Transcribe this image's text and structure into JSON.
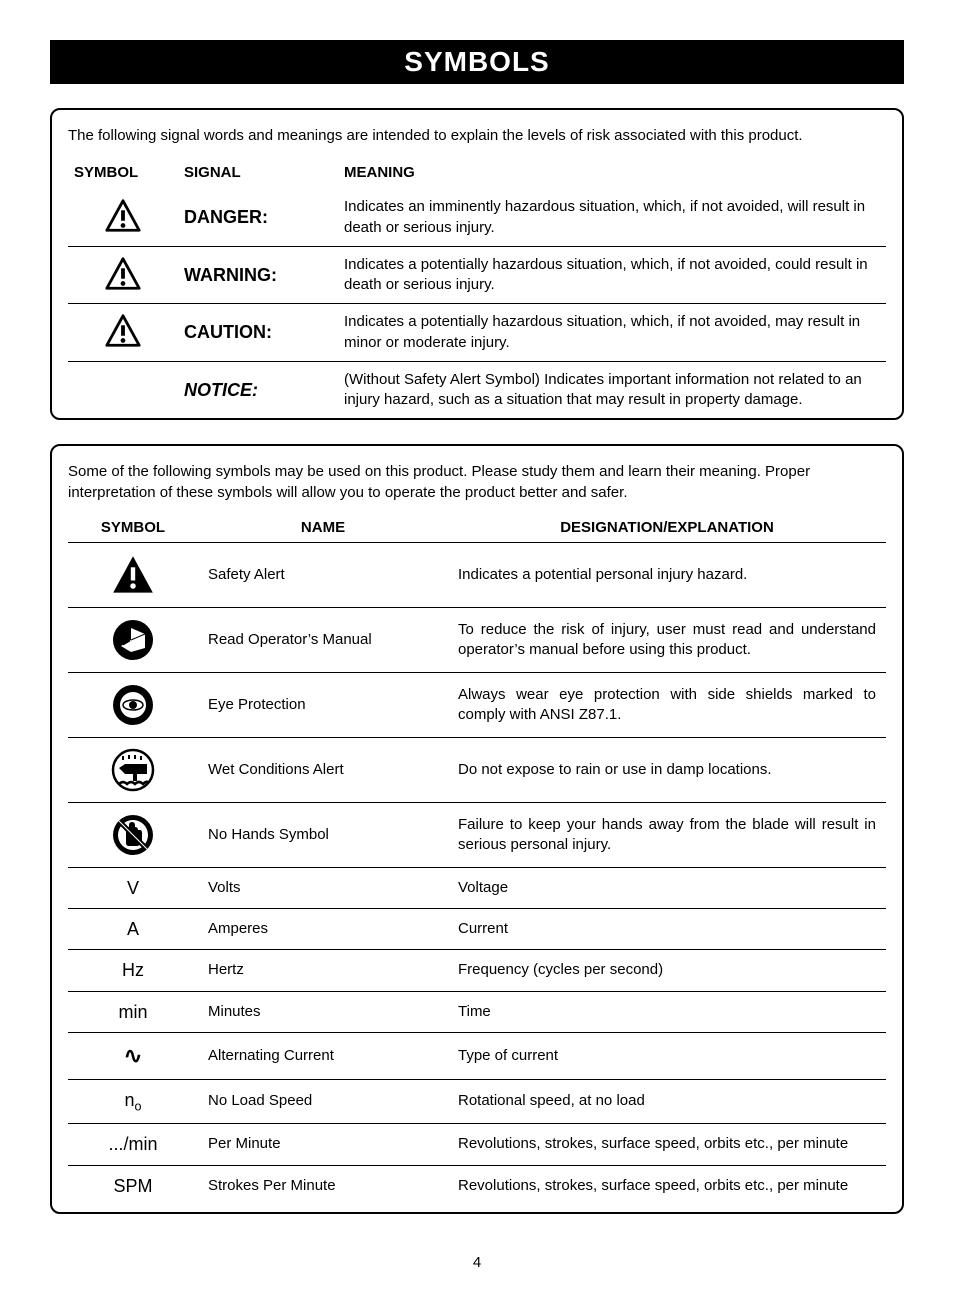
{
  "title": "SYMBOLS",
  "box1": {
    "intro": "The following signal words and meanings are intended to explain the levels of risk associated with this product.",
    "headers": {
      "symbol": "SYMBOL",
      "signal": "SIGNAL",
      "meaning": "MEANING"
    },
    "rows": [
      {
        "signal": "DANGER:",
        "signalClass": "sig-danger",
        "hasIcon": true,
        "meaning": "Indicates an imminently hazardous situation, which, if not avoided, will result in death or serious injury."
      },
      {
        "signal": "WARNING:",
        "signalClass": "sig-warning",
        "hasIcon": true,
        "meaning": "Indicates a potentially hazardous situation, which, if not avoided, could result in death or serious injury."
      },
      {
        "signal": "CAUTION:",
        "signalClass": "sig-caution",
        "hasIcon": true,
        "meaning": "Indicates a potentially hazardous situation, which, if not avoided, may result in minor or moderate injury."
      },
      {
        "signal": "NOTICE:",
        "signalClass": "sig-notice",
        "hasIcon": false,
        "meaning": "(Without Safety Alert Symbol) Indicates important information not related to an injury hazard, such as a situation that may result in property damage."
      }
    ]
  },
  "box2": {
    "intro": "Some of the following symbols may be used on this product. Please study them and learn their meaning. Proper interpretation of these symbols will allow you to operate the product better and safer.",
    "headers": {
      "symbol": "SYMBOL",
      "name": "NAME",
      "desc": "DESIGNATION/EXPLANATION"
    },
    "rows": [
      {
        "icon": "alert-tri",
        "name": "Safety Alert",
        "desc": "Indicates a potential personal injury hazard."
      },
      {
        "icon": "manual",
        "name": "Read Operator’s Manual",
        "desc": "To reduce the risk of injury, user must read and understand operator’s manual before using this product."
      },
      {
        "icon": "eye",
        "name": "Eye Protection",
        "desc": "Always wear eye protection with side shields marked to comply with ANSI Z87.1."
      },
      {
        "icon": "wet",
        "name": "Wet Conditions Alert",
        "desc": "Do not expose to rain or use in damp locations."
      },
      {
        "icon": "nohands",
        "name": "No Hands Symbol",
        "desc": "Failure to keep your hands away from the blade will result in serious personal injury."
      },
      {
        "text": "V",
        "name": "Volts",
        "desc": "Voltage"
      },
      {
        "text": "A",
        "name": "Amperes",
        "desc": "Current"
      },
      {
        "text": "Hz",
        "name": "Hertz",
        "desc": "Frequency (cycles per second)"
      },
      {
        "text": "min",
        "name": "Minutes",
        "desc": "Time"
      },
      {
        "icon": "ac",
        "name": "Alternating Current",
        "desc": "Type of current"
      },
      {
        "icon": "n0",
        "name": "No Load Speed",
        "desc": "Rotational speed, at no load"
      },
      {
        "text": ".../min",
        "name": "Per Minute",
        "desc": "Revolutions, strokes, surface speed, orbits etc., per minute"
      },
      {
        "text": "SPM",
        "name": "Strokes Per Minute",
        "desc": "Revolutions, strokes, surface speed, orbits etc., per minute"
      }
    ]
  },
  "pageNumber": "4",
  "colors": {
    "page_bg": "#ffffff",
    "text": "#000000",
    "titlebar_bg": "#000000",
    "titlebar_fg": "#ffffff",
    "rule": "#000000"
  },
  "typography": {
    "body_pt": 15,
    "title_pt": 28,
    "signal_pt": 18
  }
}
